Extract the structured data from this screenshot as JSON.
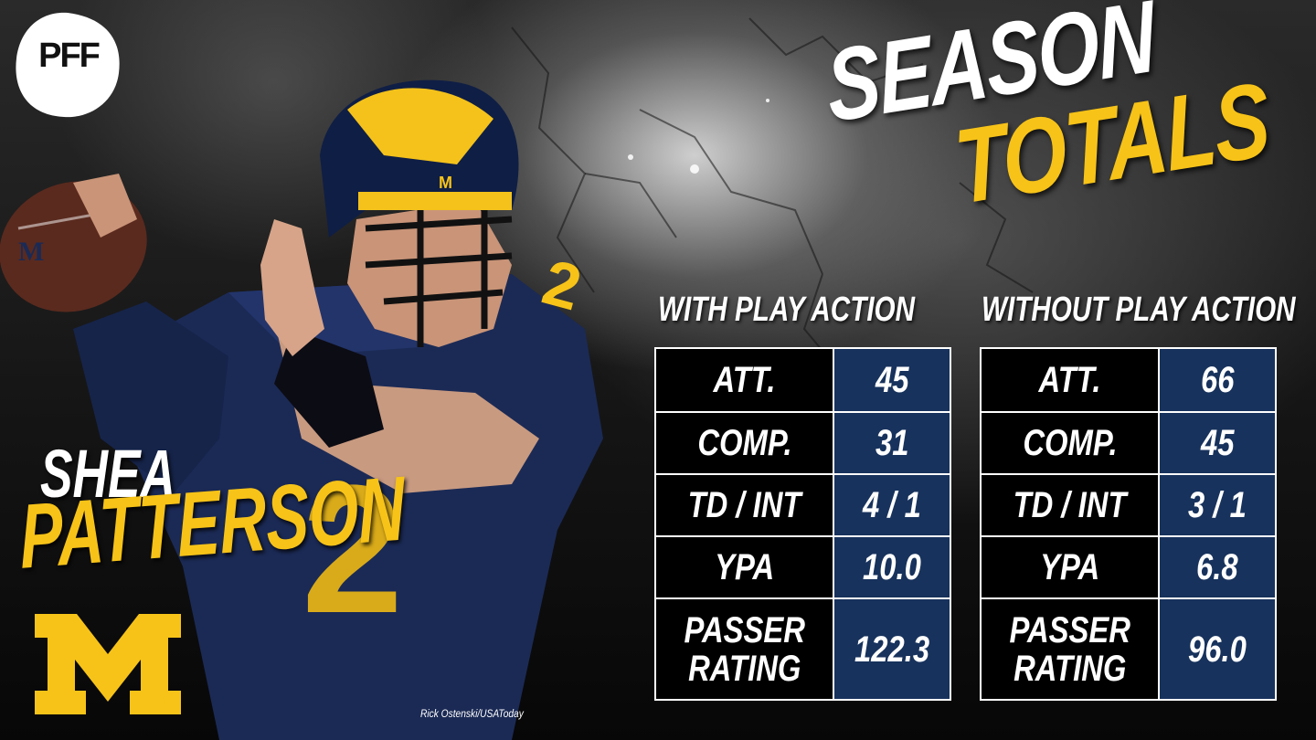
{
  "brand": {
    "logo_text": "PFF"
  },
  "title": {
    "line1": "SEASON",
    "line2": "TOTALS"
  },
  "player": {
    "first_name": "SHEA",
    "last_name": "PATTERSON",
    "team_logo": "michigan-block-m",
    "team_logo_text": "M",
    "registered_mark": "®",
    "jersey_number": "2",
    "helmet_letter": "M"
  },
  "photo_credit": "Rick Ostenski/USAToday",
  "tables": [
    {
      "heading": "WITH PLAY ACTION",
      "rows": [
        {
          "label": "ATT.",
          "value": "45"
        },
        {
          "label": "COMP.",
          "value": "31"
        },
        {
          "label": "TD / INT",
          "value": "4 / 1"
        },
        {
          "label": "YPA",
          "value": "10.0"
        },
        {
          "label": "PASSER\nRATING",
          "value": "122.3"
        }
      ]
    },
    {
      "heading": "WITHOUT PLAY ACTION",
      "rows": [
        {
          "label": "ATT.",
          "value": "66"
        },
        {
          "label": "COMP.",
          "value": "45"
        },
        {
          "label": "TD / INT",
          "value": "3 / 1"
        },
        {
          "label": "YPA",
          "value": "6.8"
        },
        {
          "label": "PASSER\nRATING",
          "value": "96.0"
        }
      ]
    }
  ],
  "colors": {
    "maize": "#f7c318",
    "navy": "#17325c",
    "white": "#ffffff",
    "black": "#000000"
  }
}
